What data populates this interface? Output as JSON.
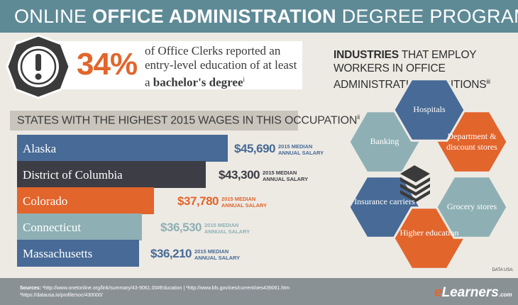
{
  "header": {
    "title_pre": "ONLINE ",
    "title_bold": "OFFICE ADMINISTRATION",
    "title_post": " DEGREE PROGRAMS"
  },
  "stat": {
    "percent": "34%",
    "line1": "of Office Clerks reported an",
    "line2": "entry-level education of at least",
    "line3_pre": "a ",
    "line3_bold": "bachelor's degree",
    "sup": "i",
    "icon": "exclamation-icon"
  },
  "states": {
    "title": "STATES WITH THE HIGHEST 2015 WAGES IN THIS OCCUPATION",
    "sup": "ii"
  },
  "chart_data": {
    "type": "bar",
    "orientation": "horizontal",
    "title": "STATES WITH THE HIGHEST 2015 WAGES IN THIS OCCUPATION",
    "categories": [
      "Alaska",
      "District of Columbia",
      "Colorado",
      "Connecticut",
      "Massachusetts"
    ],
    "values": [
      45690,
      43300,
      37780,
      36530,
      36210
    ],
    "value_labels": [
      "$45,690",
      "$43,300",
      "$37,780",
      "$36,530",
      "$36,210"
    ],
    "note_line1": "2015 MEDIAN",
    "note_line2": "ANNUAL SALARY",
    "colors": [
      "#476a96",
      "#3d3d45",
      "#e2652c",
      "#8eb0b4",
      "#476a96"
    ],
    "value_colors": [
      "#476a96",
      "#3d3d45",
      "#e2652c",
      "#8eb0b4",
      "#476a96"
    ]
  },
  "industries": {
    "title_bold": "INDUSTRIES",
    "title_rest": " THAT EMPLOY WORKERS IN OFFICE ADMINISTRATION POSITIONS",
    "sup": "iii",
    "center_icon": "stacked-papers-icon",
    "items": [
      {
        "label": "Hospitals",
        "color": "#476a96"
      },
      {
        "label": "Department & discount stores",
        "color": "#e2652c"
      },
      {
        "label": "Grocery stores",
        "color": "#8eb0b4"
      },
      {
        "label": "Higher education",
        "color": "#e2652c"
      },
      {
        "label": "Insurance carriers",
        "color": "#476a96"
      },
      {
        "label": "Banking",
        "color": "#8eb0b4"
      }
    ]
  },
  "datausa": "DATA USA:",
  "footer": {
    "sources_label": "Sources:",
    "sources_line1": " ¹http://www.onetonline.org/link/summary/43-9061.00#Education  |  ²http://www.bls.gov/oes/current/oes439061.htm",
    "sources_line2": "³https://datausa.io/profile/soc/430000/",
    "logo_e": "e",
    "logo_rest": "Learners",
    "logo_com": ".com"
  }
}
